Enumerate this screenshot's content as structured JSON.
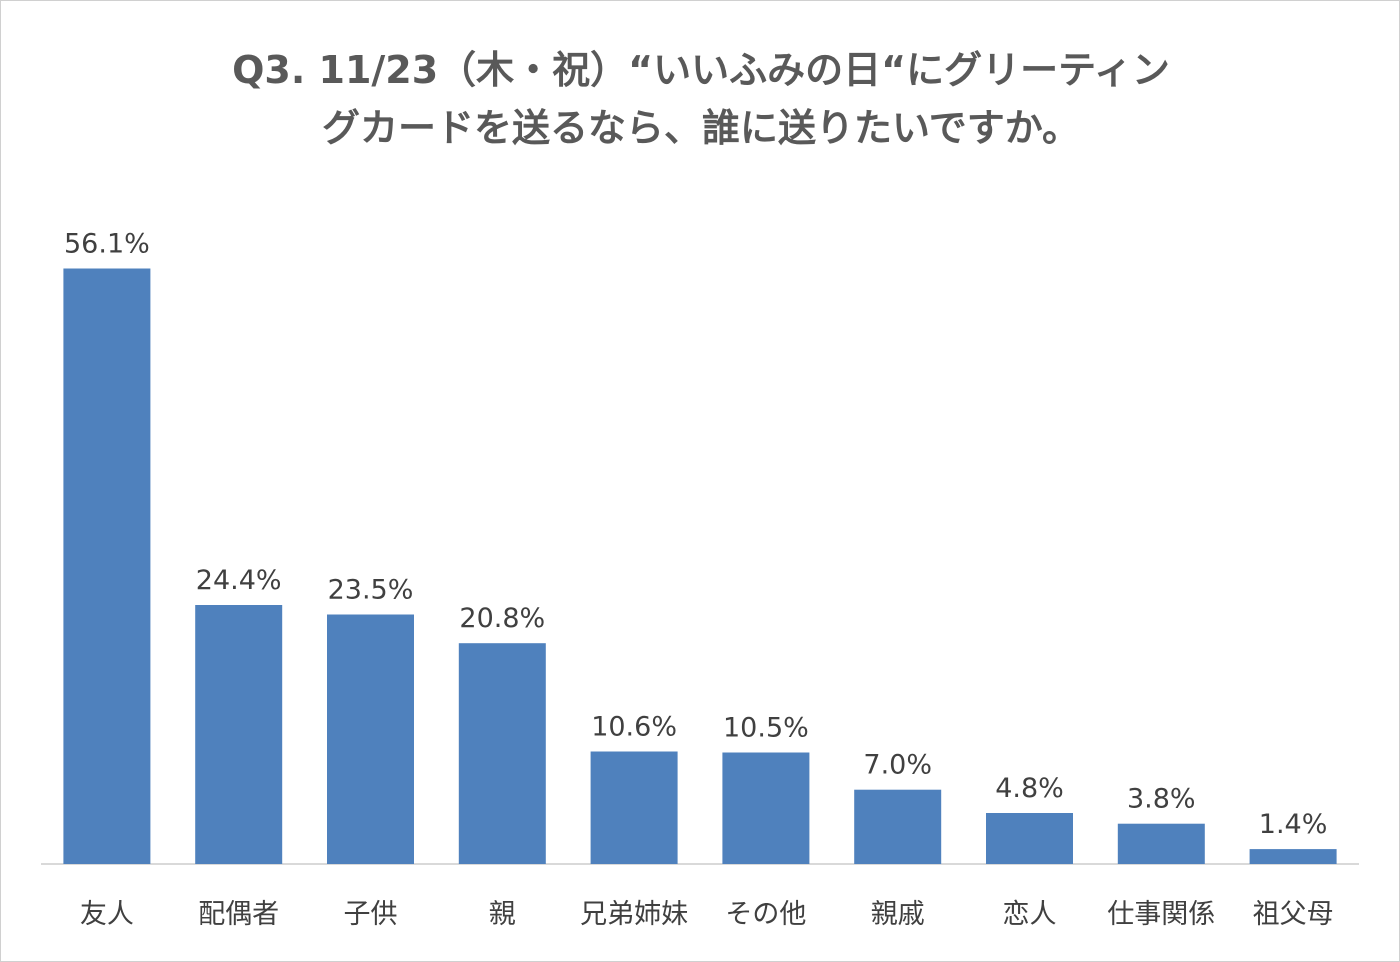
{
  "chart_data": {
    "type": "bar",
    "title_lines": [
      "Q3.  11/23（木・祝）“いいふみの日“にグリーティン",
      "グカードを送るなら、誰に送りたいですか。"
    ],
    "categories": [
      "友人",
      "配偶者",
      "子供",
      "親",
      "兄弟姉妹",
      "その他",
      "親戚",
      "恋人",
      "仕事関係",
      "祖父母"
    ],
    "values": [
      56.1,
      24.4,
      23.5,
      20.8,
      10.6,
      10.5,
      7.0,
      4.8,
      3.8,
      1.4
    ],
    "value_labels": [
      "56.1%",
      "24.4%",
      "23.5%",
      "20.8%",
      "10.6%",
      "10.5%",
      "7.0%",
      "4.8%",
      "3.8%",
      "1.4%"
    ],
    "ylim": [
      0,
      60
    ],
    "grid": false,
    "bar_color": "#4f81bd",
    "axis_color": "#d9d9d9",
    "text_color": "#404040"
  }
}
